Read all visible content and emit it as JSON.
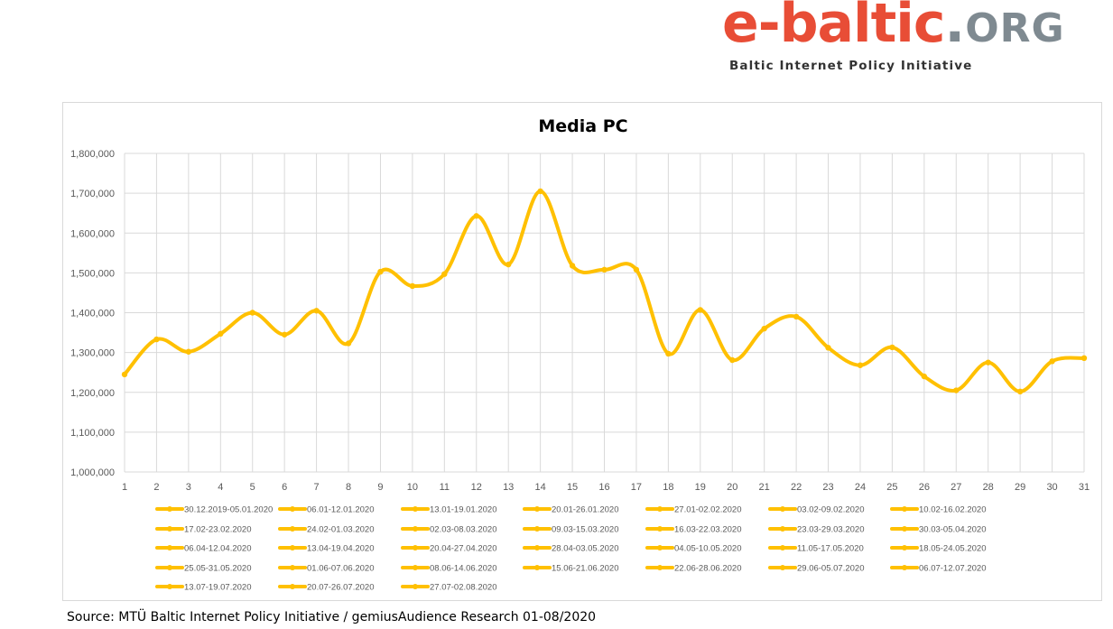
{
  "logo": {
    "word": "e-baltic",
    "dot": ".",
    "org": "ORG",
    "tagline": "Baltic Internet Policy Initiative",
    "colors": {
      "word": "#e84d36",
      "org": "#7f8a91"
    }
  },
  "source": "Source: MTÜ Baltic Internet Policy Initiative / gemiusAudience Research 01-08/2020",
  "chart_data": {
    "type": "line",
    "title": "Media PC",
    "xlabel": "",
    "ylabel": "",
    "x": [
      1,
      2,
      3,
      4,
      5,
      6,
      7,
      8,
      9,
      10,
      11,
      12,
      13,
      14,
      15,
      16,
      17,
      18,
      19,
      20,
      21,
      22,
      23,
      24,
      25,
      26,
      27,
      28,
      29,
      30,
      31
    ],
    "ylim": [
      1000000,
      1800000
    ],
    "yticks": [
      1000000,
      1100000,
      1200000,
      1300000,
      1400000,
      1500000,
      1600000,
      1700000,
      1800000
    ],
    "ytick_labels": [
      "1,000,000",
      "1,100,000",
      "1,200,000",
      "1,300,000",
      "1,400,000",
      "1,500,000",
      "1,600,000",
      "1,700,000",
      "1,800,000"
    ],
    "grid": true,
    "line_color": "#ffc000",
    "legend_position": "bottom",
    "series": [
      {
        "values": [
          1245000,
          1333000,
          1302000,
          1347000,
          1400000,
          1345000,
          1405000,
          1323000,
          1503000,
          1467000,
          1497000,
          1643000,
          1521000,
          1705000,
          1518000,
          1508000,
          1508000,
          1297000,
          1407000,
          1281000,
          1360000,
          1390000,
          1312000,
          1268000,
          1313000,
          1240000,
          1205000,
          1275000,
          1202000,
          1278000,
          1286000
        ]
      }
    ],
    "legend": [
      "30.12.2019-05.01.2020",
      "06.01-12.01.2020",
      "13.01-19.01.2020",
      "20.01-26.01.2020",
      "27.01-02.02.2020",
      "03.02-09.02.2020",
      "10.02-16.02.2020",
      "17.02-23.02.2020",
      "24.02-01.03.2020",
      "02.03-08.03.2020",
      "09.03-15.03.2020",
      "16.03-22.03.2020",
      "23.03-29.03.2020",
      "30.03-05.04.2020",
      "06.04-12.04.2020",
      "13.04-19.04.2020",
      "20.04-27.04.2020",
      "28.04-03.05.2020",
      "04.05-10.05.2020",
      "11.05-17.05.2020",
      "18.05-24.05.2020",
      "25.05-31.05.2020",
      "01.06-07.06.2020",
      "08.06-14.06.2020",
      "15.06-21.06.2020",
      "22.06-28.06.2020",
      "29.06-05.07.2020",
      "06.07-12.07.2020",
      "13.07-19.07.2020",
      "20.07-26.07.2020",
      "27.07-02.08.2020"
    ]
  }
}
